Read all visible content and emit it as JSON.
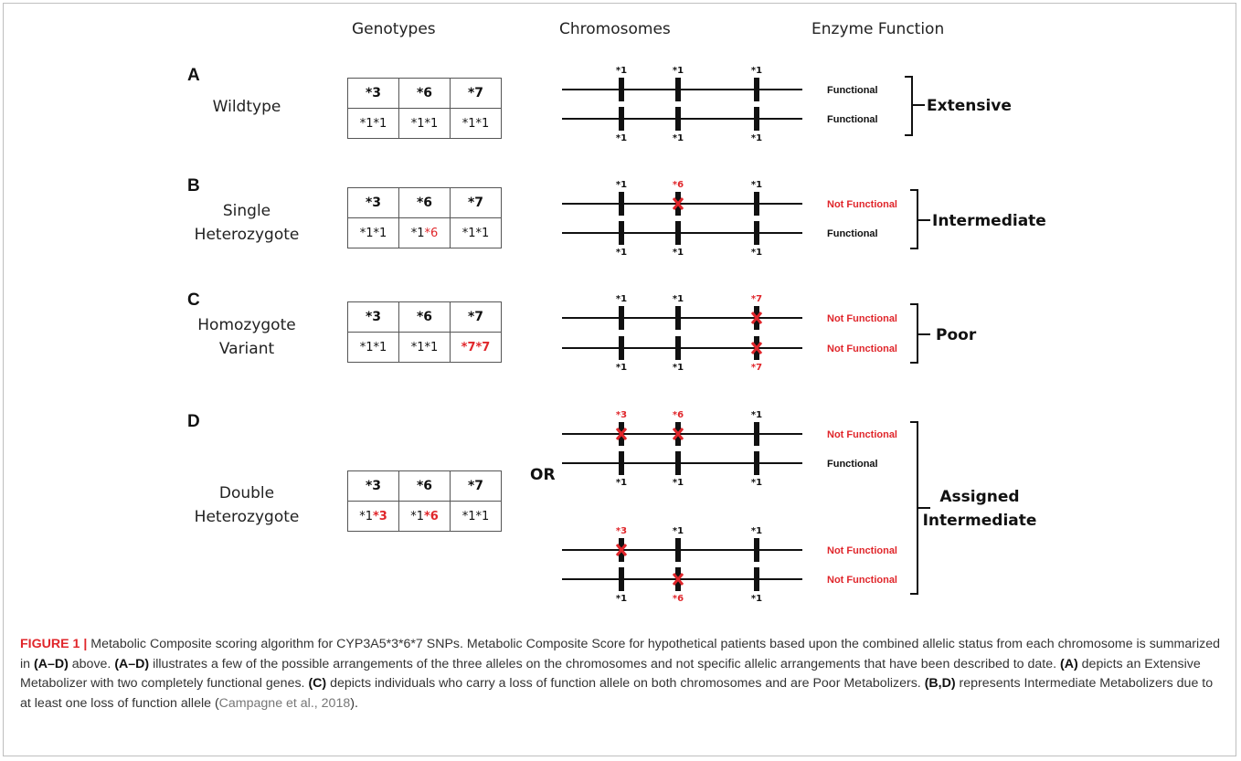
{
  "headers": {
    "genotypes": "Genotypes",
    "chromosomes": "Chromosomes",
    "enzyme_function": "Enzyme Function"
  },
  "or_text": "OR",
  "panels": [
    {
      "letter": "A",
      "label_lines": [
        "Wildtype"
      ],
      "genotype_header": [
        "*3",
        "*6",
        "*7"
      ],
      "genotype_row": [
        [
          "*1*1"
        ],
        [
          "*1*1"
        ],
        [
          "*1*1"
        ]
      ],
      "genotype_red_part": [
        null,
        null,
        null
      ],
      "chromosome_sets": [
        {
          "top_labels": [
            "*1",
            "*1",
            "*1"
          ],
          "bottom_labels": [
            "*1",
            "*1",
            "*1"
          ],
          "top_red": [
            false,
            false,
            false
          ],
          "bottom_red": [
            false,
            false,
            false
          ],
          "function": [
            "Functional",
            "Functional"
          ]
        }
      ],
      "outcome_lines": [
        "Extensive"
      ]
    },
    {
      "letter": "B",
      "label_lines": [
        "Single",
        "Heterozygote"
      ],
      "genotype_header": [
        "*3",
        "*6",
        "*7"
      ],
      "genotype_row": [
        [
          "*1*1"
        ],
        [
          "*1",
          "*6"
        ],
        [
          "*1*1"
        ]
      ],
      "chromosome_sets": [
        {
          "top_labels": [
            "*1",
            "*6",
            "*1"
          ],
          "bottom_labels": [
            "*1",
            "*1",
            "*1"
          ],
          "top_red": [
            false,
            true,
            false
          ],
          "bottom_red": [
            false,
            false,
            false
          ],
          "function": [
            "Not Functional",
            "Functional"
          ]
        }
      ],
      "outcome_lines": [
        "Intermediate"
      ]
    },
    {
      "letter": "C",
      "label_lines": [
        "Homozygote",
        "Variant"
      ],
      "genotype_header": [
        "*3",
        "*6",
        "*7"
      ],
      "genotype_row": [
        [
          "*1*1"
        ],
        [
          "*1*1"
        ],
        [
          "",
          "*7*7"
        ]
      ],
      "chromosome_sets": [
        {
          "top_labels": [
            "*1",
            "*1",
            "*7"
          ],
          "bottom_labels": [
            "*1",
            "*1",
            "*7"
          ],
          "top_red": [
            false,
            false,
            true
          ],
          "bottom_red": [
            false,
            false,
            true
          ],
          "function": [
            "Not Functional",
            "Not Functional"
          ]
        }
      ],
      "outcome_lines": [
        "Poor"
      ]
    },
    {
      "letter": "D",
      "label_lines": [
        "Double",
        "Heterozygote"
      ],
      "genotype_header": [
        "*3",
        "*6",
        "*7"
      ],
      "genotype_row": [
        [
          "*1",
          "*3"
        ],
        [
          "*1",
          "*6"
        ],
        [
          "*1*1"
        ]
      ],
      "chromosome_sets": [
        {
          "top_labels": [
            "*3",
            "*6",
            "*1"
          ],
          "bottom_labels": [
            "*1",
            "*1",
            "*1"
          ],
          "top_red": [
            true,
            true,
            false
          ],
          "bottom_red": [
            false,
            false,
            false
          ],
          "function": [
            "Not Functional",
            "Functional"
          ]
        },
        {
          "top_labels": [
            "*3",
            "*1",
            "*1"
          ],
          "bottom_labels": [
            "*1",
            "*6",
            "*1"
          ],
          "top_red": [
            true,
            false,
            false
          ],
          "bottom_red": [
            false,
            true,
            false
          ],
          "function": [
            "Not Functional",
            "Not Functional"
          ]
        }
      ],
      "outcome_lines": [
        "Assigned",
        "Intermediate"
      ]
    }
  ],
  "caption": {
    "figure_label": "FIGURE 1 |",
    "parts": [
      {
        "t": " Metabolic Composite scoring algorithm for CYP3A5*3*6*7 SNPs. Metabolic Composite Score for hypothetical patients based upon the combined allelic status from each chromosome is summarized in ",
        "s": "n"
      },
      {
        "t": "(A–D)",
        "s": "b"
      },
      {
        "t": " above. ",
        "s": "n"
      },
      {
        "t": "(A–D)",
        "s": "b"
      },
      {
        "t": " illustrates a few of the possible arrangements of the three alleles on the chromosomes and not specific allelic arrangements that have been described to date. ",
        "s": "n"
      },
      {
        "t": "(A)",
        "s": "b"
      },
      {
        "t": " depicts an Extensive Metabolizer with two completely functional genes. ",
        "s": "n"
      },
      {
        "t": "(C)",
        "s": "b"
      },
      {
        "t": " depicts individuals who carry a loss of function allele on both chromosomes and are Poor Metabolizers. ",
        "s": "n"
      },
      {
        "t": "(B,D)",
        "s": "b"
      },
      {
        "t": " represents Intermediate Metabolizers due to at least one loss of function allele (",
        "s": "n"
      },
      {
        "t": "Campagne et al., 2018",
        "s": "c"
      },
      {
        "t": ").",
        "s": "n"
      }
    ]
  }
}
